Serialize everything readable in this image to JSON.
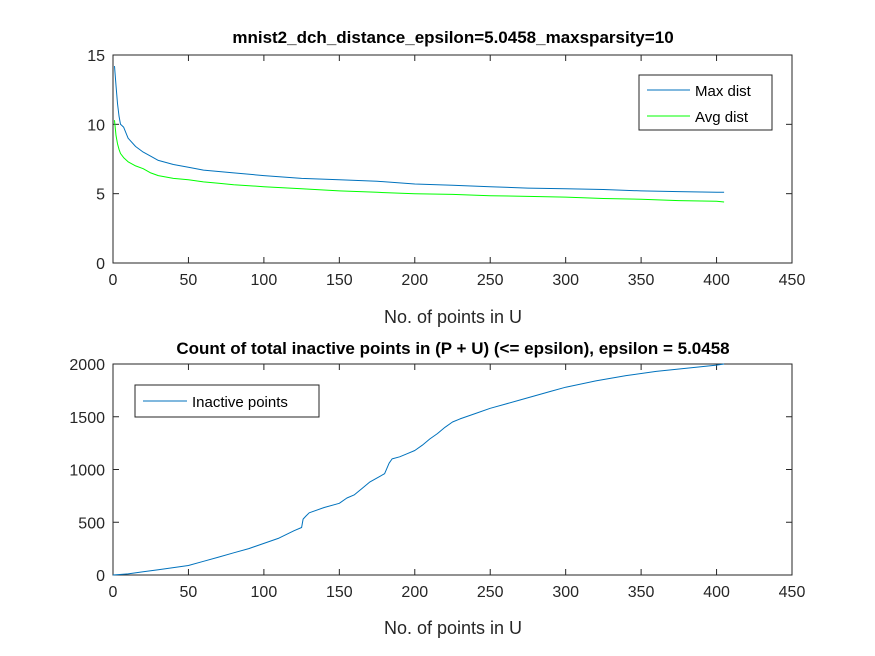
{
  "chart_data": [
    {
      "type": "line",
      "title": "mnist2_dch_distance_epsilon=5.0458_maxsparsity=10",
      "xlabel": "No. of points in U",
      "ylabel": "",
      "xlim": [
        0,
        450
      ],
      "ylim": [
        0,
        15
      ],
      "xticks": [
        "0",
        "50",
        "100",
        "150",
        "200",
        "250",
        "300",
        "350",
        "400",
        "450"
      ],
      "yticks": [
        "0",
        "5",
        "10",
        "15"
      ],
      "grid": false,
      "legend_position": "top-right",
      "series": [
        {
          "name": "Max dist",
          "color": "#0072bd",
          "x": [
            1,
            2,
            3,
            4,
            5,
            7,
            10,
            15,
            20,
            25,
            30,
            40,
            50,
            60,
            70,
            80,
            100,
            125,
            150,
            175,
            200,
            225,
            250,
            275,
            300,
            325,
            350,
            375,
            400,
            405
          ],
          "y": [
            14.2,
            12.8,
            11.5,
            10.6,
            10.0,
            9.8,
            9.0,
            8.4,
            8.0,
            7.7,
            7.4,
            7.1,
            6.9,
            6.7,
            6.6,
            6.5,
            6.3,
            6.1,
            6.0,
            5.9,
            5.7,
            5.6,
            5.5,
            5.4,
            5.35,
            5.3,
            5.2,
            5.15,
            5.1,
            5.1
          ]
        },
        {
          "name": "Avg dist",
          "color": "#00ff00",
          "x": [
            1,
            2,
            3,
            4,
            5,
            7,
            10,
            15,
            20,
            25,
            30,
            40,
            50,
            60,
            70,
            80,
            100,
            125,
            150,
            175,
            200,
            225,
            250,
            275,
            300,
            325,
            350,
            375,
            400,
            405
          ],
          "y": [
            10.3,
            9.2,
            8.6,
            8.2,
            7.9,
            7.6,
            7.3,
            7.0,
            6.8,
            6.5,
            6.3,
            6.1,
            6.0,
            5.85,
            5.75,
            5.65,
            5.5,
            5.35,
            5.2,
            5.1,
            5.0,
            4.95,
            4.85,
            4.8,
            4.75,
            4.65,
            4.6,
            4.5,
            4.45,
            4.4
          ]
        }
      ]
    },
    {
      "type": "line",
      "title": "Count of total inactive points in (P + U) (<= epsilon), epsilon = 5.0458",
      "xlabel": "No. of points in U",
      "ylabel": "",
      "xlim": [
        0,
        450
      ],
      "ylim": [
        0,
        2000
      ],
      "xticks": [
        "0",
        "50",
        "100",
        "150",
        "200",
        "250",
        "300",
        "350",
        "400",
        "450"
      ],
      "yticks": [
        "0",
        "500",
        "1000",
        "1500",
        "2000"
      ],
      "grid": false,
      "legend_position": "top-left",
      "series": [
        {
          "name": "Inactive points",
          "color": "#0072bd",
          "x": [
            0,
            10,
            20,
            30,
            40,
            50,
            60,
            70,
            80,
            90,
            100,
            110,
            120,
            125,
            126,
            128,
            130,
            140,
            150,
            155,
            160,
            165,
            170,
            175,
            180,
            183,
            185,
            190,
            195,
            200,
            205,
            210,
            215,
            220,
            225,
            230,
            240,
            250,
            260,
            270,
            280,
            290,
            300,
            320,
            340,
            360,
            380,
            400,
            405
          ],
          "y": [
            0,
            10,
            30,
            50,
            70,
            90,
            130,
            170,
            210,
            250,
            300,
            350,
            420,
            450,
            530,
            560,
            590,
            640,
            680,
            730,
            760,
            820,
            880,
            920,
            960,
            1060,
            1100,
            1120,
            1150,
            1180,
            1230,
            1290,
            1340,
            1400,
            1450,
            1480,
            1530,
            1580,
            1620,
            1660,
            1700,
            1740,
            1780,
            1840,
            1890,
            1930,
            1960,
            1990,
            2000
          ]
        }
      ]
    }
  ]
}
